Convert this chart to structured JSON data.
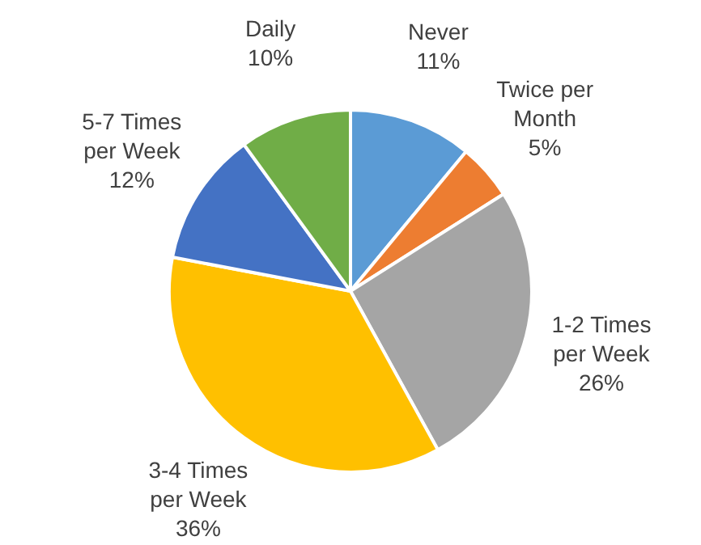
{
  "chart_data": {
    "type": "pie",
    "categories": [
      "Never",
      "Twice per Month",
      "1-2 Times per Week",
      "3-4 Times per Week",
      "5-7 Times per Week",
      "Daily"
    ],
    "values": [
      11,
      5,
      26,
      36,
      12,
      10
    ],
    "colors": [
      "#5b9bd5",
      "#ed7d31",
      "#a5a5a5",
      "#ffc000",
      "#4472c4",
      "#70ad47"
    ],
    "value_labels": [
      "11%",
      "5%",
      "26%",
      "36%",
      "12%",
      "10%"
    ],
    "legend": false
  }
}
